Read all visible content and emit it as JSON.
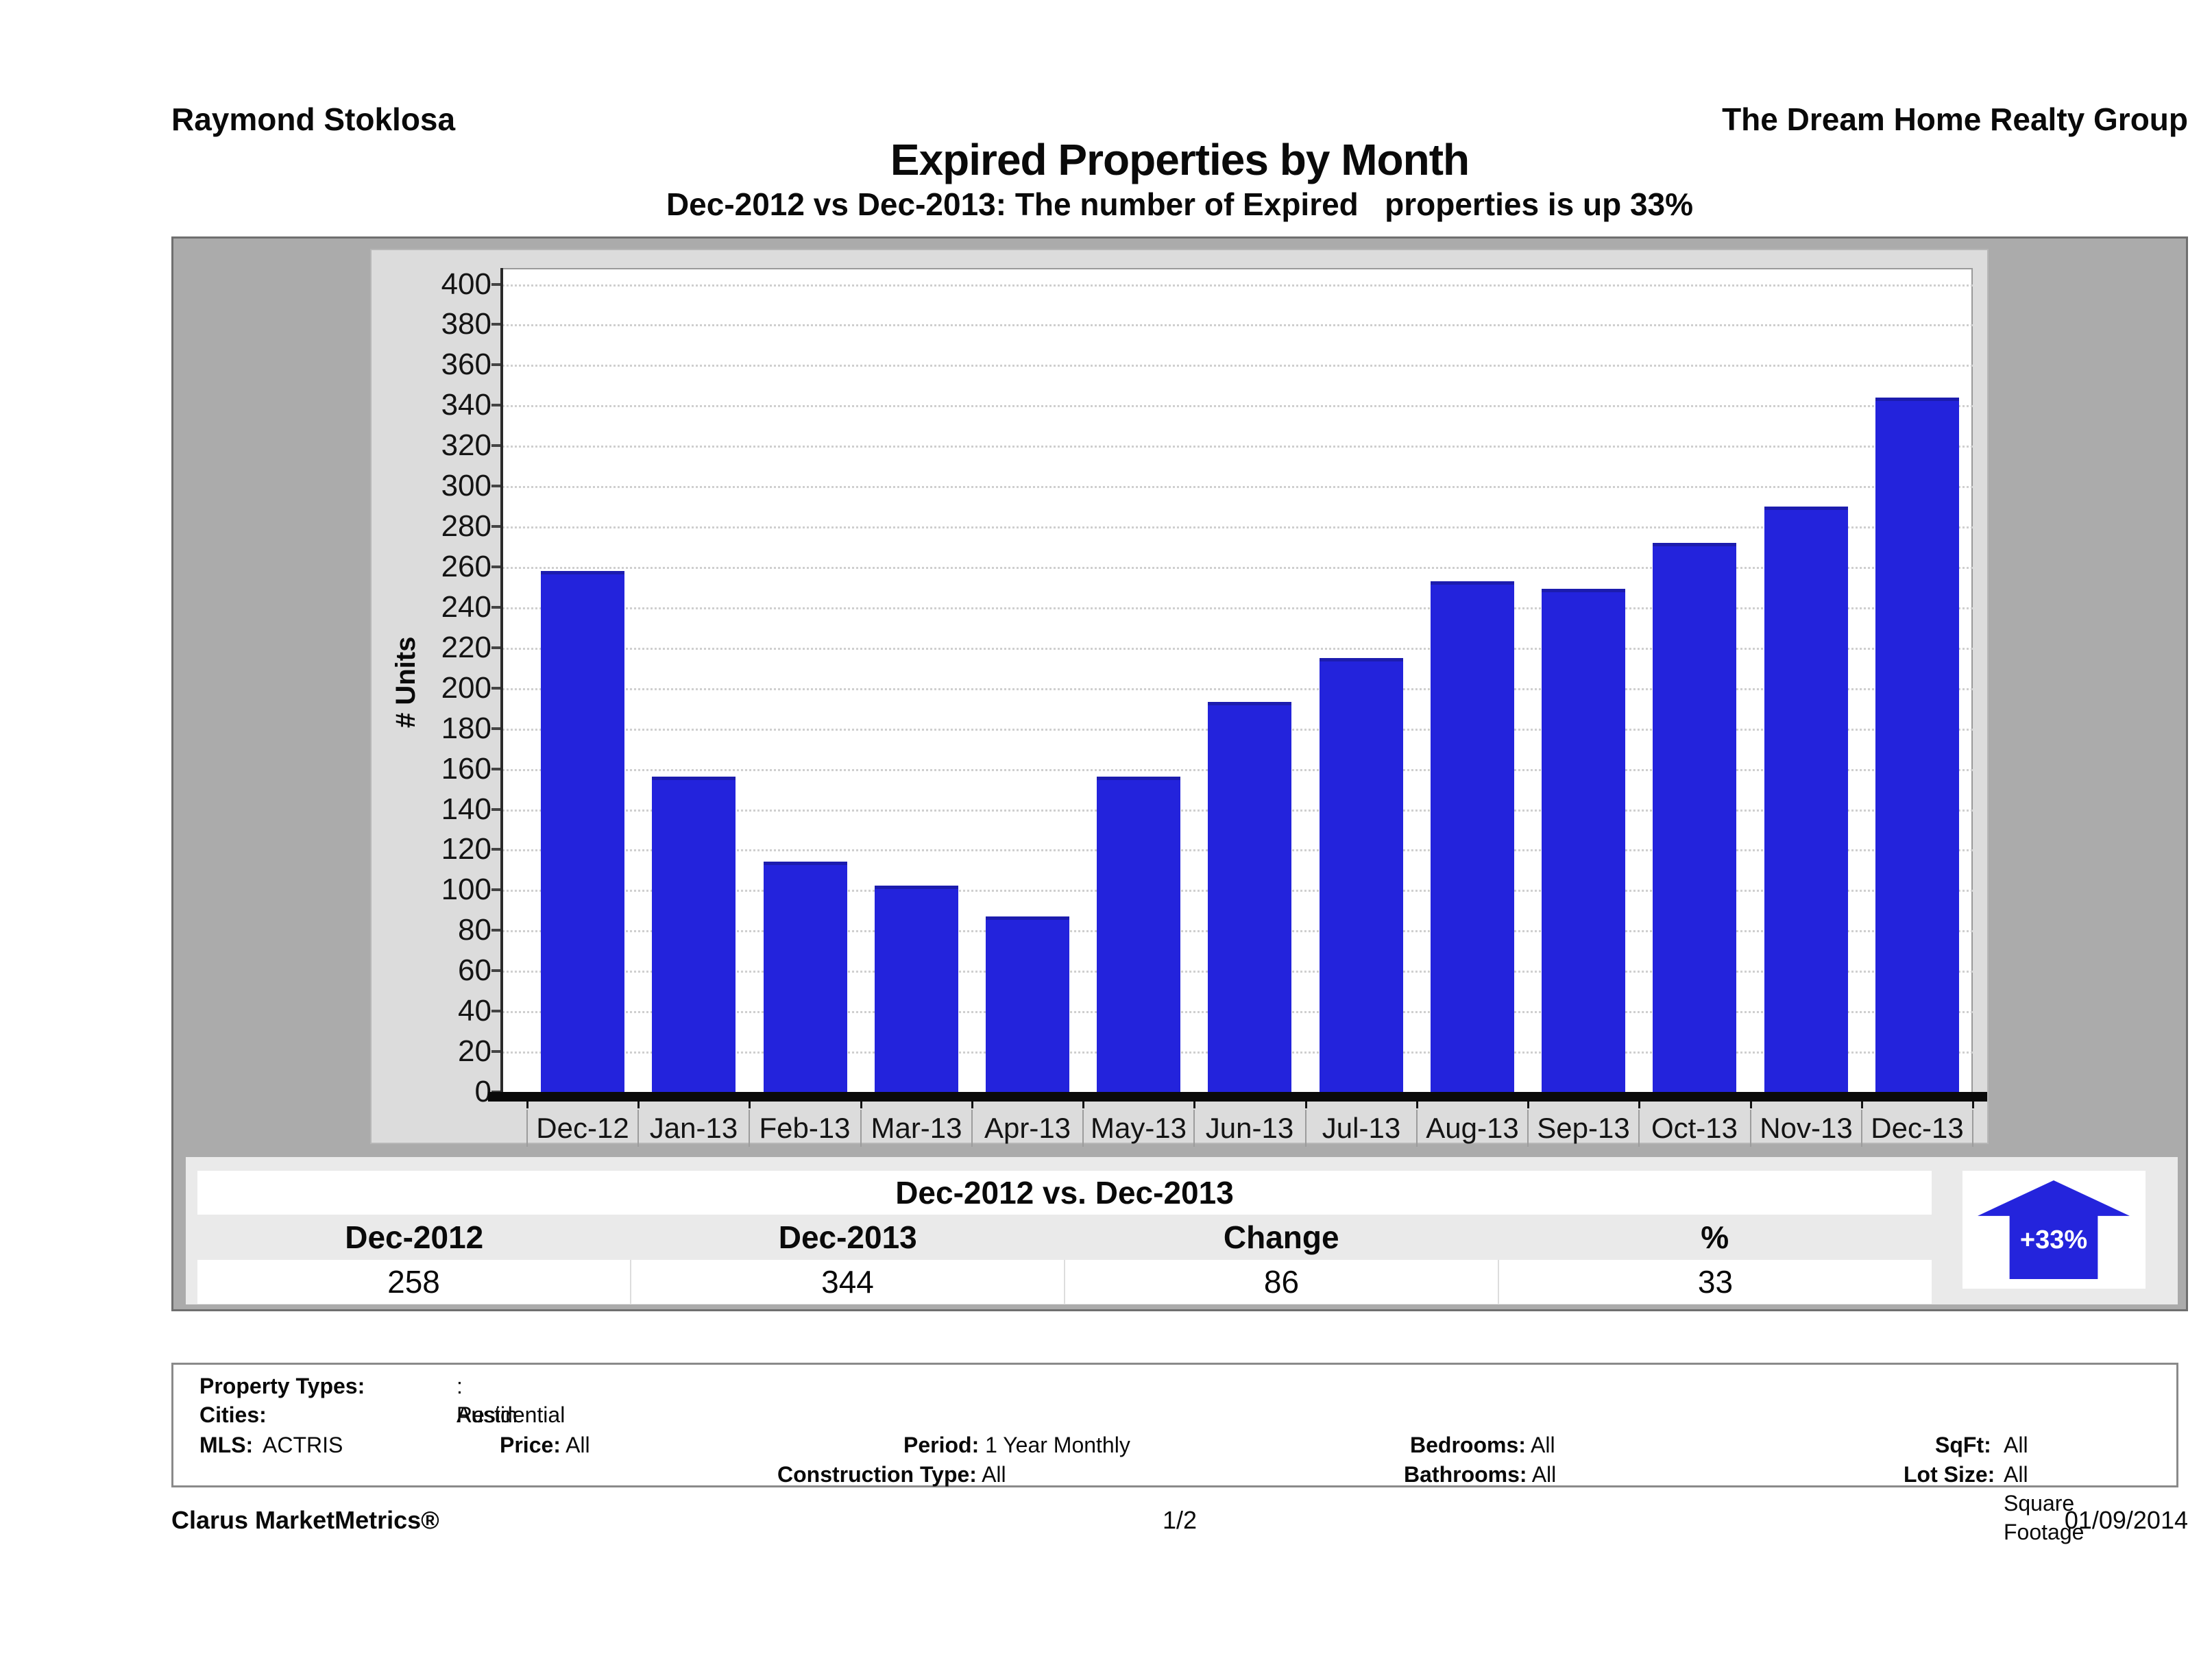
{
  "header": {
    "left": "Raymond Stoklosa",
    "right": "The Dream Home Realty Group"
  },
  "title": "Expired Properties by Month",
  "subtitle": "Dec-2012 vs Dec-2013: The number of Expired   properties is up 33%",
  "chart_data": {
    "type": "bar",
    "title": "Expired Properties by Month",
    "categories": [
      "Dec-12",
      "Jan-13",
      "Feb-13",
      "Mar-13",
      "Apr-13",
      "May-13",
      "Jun-13",
      "Jul-13",
      "Aug-13",
      "Sep-13",
      "Oct-13",
      "Nov-13",
      "Dec-13"
    ],
    "values": [
      258,
      156,
      114,
      102,
      87,
      156,
      193,
      215,
      253,
      249,
      272,
      290,
      344
    ],
    "xlabel": "",
    "ylabel": "# Units",
    "ylim": [
      0,
      400
    ],
    "ytick_step": 20,
    "grid": "horizontal-dotted",
    "legend": "none",
    "bar_color": "#2323dc"
  },
  "comparison_table": {
    "title": "Dec-2012 vs. Dec-2013",
    "columns": [
      "Dec-2012",
      "Dec-2013",
      "Change",
      "%"
    ],
    "values": [
      "258",
      "344",
      "86",
      "33"
    ]
  },
  "badge": {
    "label": "+33%",
    "direction": "up",
    "color": "#2424dc"
  },
  "filters": {
    "property_types_label": "Property Types:",
    "property_types": ": Residential",
    "cities_label": "Cities:",
    "cities": "Austin",
    "mls_label": "MLS:",
    "mls": "ACTRIS",
    "price_label": "Price:",
    "price": "All",
    "period_label": "Period:",
    "period": "1 Year Monthly",
    "construction_label": "Construction Type:",
    "construction": "All",
    "bedrooms_label": "Bedrooms:",
    "bedrooms": "All",
    "bathrooms_label": "Bathrooms:",
    "bathrooms": "All",
    "sqft_label": "SqFt:",
    "sqft": "All",
    "lot_label": "Lot Size:",
    "lot": "All Square Footage"
  },
  "footer": {
    "left": "Clarus MarketMetrics®",
    "center": "1/2",
    "right": "01/09/2014"
  }
}
